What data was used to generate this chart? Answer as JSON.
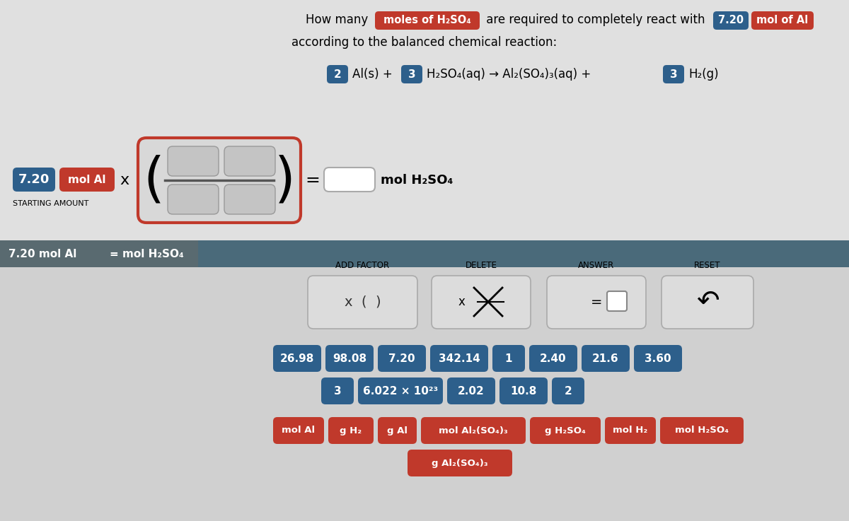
{
  "bg_top": "#c8c8c8",
  "bg_bottom": "#d0d0d0",
  "blue_dark": "#2d5f8b",
  "red_dark": "#c0392b",
  "bar_color": "#4a7a9b",
  "status_bar_dark": "#5a6a7a",
  "title_line1_pre": "How many ",
  "title_hl1": "moles of H₂SO₄",
  "title_line1_post": " are required to completely react with ",
  "title_num": "7.20",
  "title_hl2": "mol of Al",
  "title_line2": "according to the balanced chemical reaction:",
  "status_left": "7.20 mol Al",
  "status_right": "= mol H₂SO₄",
  "num_buttons_row1": [
    "26.98",
    "98.08",
    "7.20",
    "342.14",
    "1",
    "2.40",
    "21.6",
    "3.60"
  ],
  "num_buttons_row2": [
    "3",
    "6.022 × 10²³",
    "2.02",
    "10.8",
    "2"
  ],
  "unit_buttons_row1": [
    "mol Al",
    "g H₂",
    "g Al",
    "mol Al₂(SO₄)₃",
    "g H₂SO₄",
    "mol H₂",
    "mol H₂SO₄"
  ],
  "unit_buttons_row2": [
    "g Al₂(SO₄)₃"
  ]
}
